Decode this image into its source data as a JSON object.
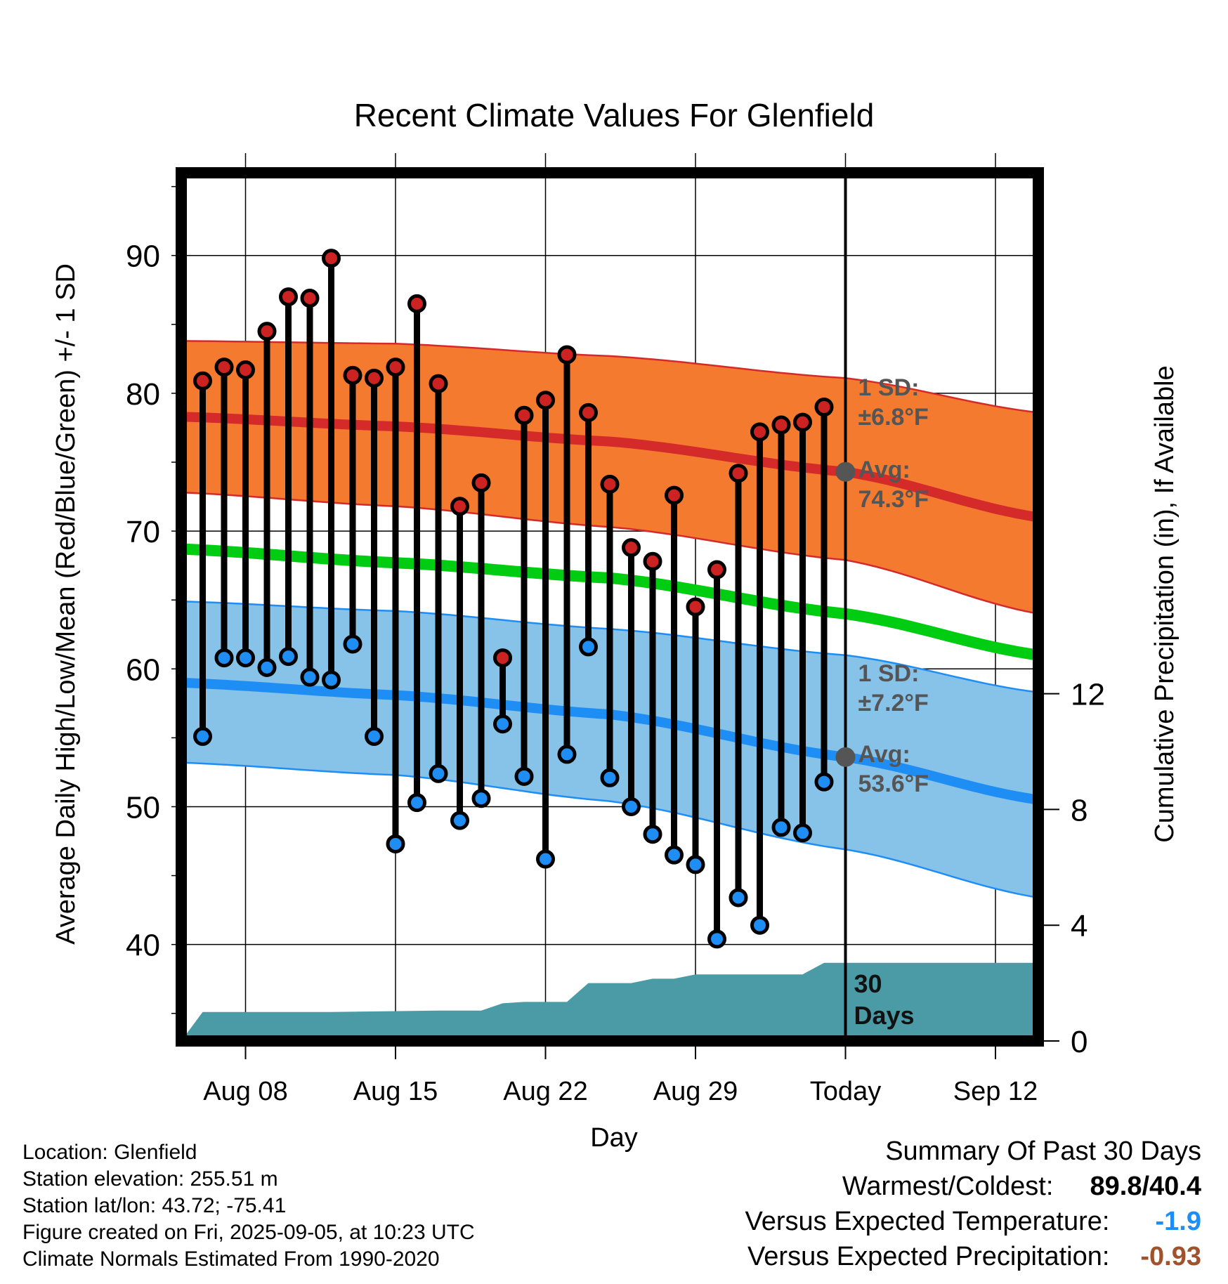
{
  "chart_data": {
    "type": "line",
    "title": "Recent Climate Values For Glenfield",
    "xlabel": "Day",
    "ylabel": "Average Daily High/Low/Mean (Red/Blue/Green) +/- 1 SD",
    "y2label": "Cumulative Precipitation (in), If Available",
    "x_ticks": [
      "Aug 08",
      "Aug 15",
      "Aug 22",
      "Aug 29",
      "Today",
      "Sep 12"
    ],
    "x_tick_dates": [
      "2025-08-08",
      "2025-08-15",
      "2025-08-22",
      "2025-08-29",
      "2025-09-05",
      "2025-09-12"
    ],
    "xlim": [
      "2025-08-05",
      "2025-09-14"
    ],
    "ylim": [
      33,
      96
    ],
    "y_ticks": [
      40,
      50,
      60,
      70,
      80,
      90
    ],
    "y2lim": [
      0,
      30
    ],
    "y2_ticks": [
      0,
      4,
      8,
      12
    ],
    "grid": true,
    "today": "2025-09-05",
    "today_label_lines": [
      "30",
      "Days"
    ],
    "observations": {
      "dates": [
        "2025-08-06",
        "2025-08-07",
        "2025-08-08",
        "2025-08-09",
        "2025-08-10",
        "2025-08-11",
        "2025-08-12",
        "2025-08-13",
        "2025-08-14",
        "2025-08-15",
        "2025-08-16",
        "2025-08-17",
        "2025-08-18",
        "2025-08-19",
        "2025-08-20",
        "2025-08-21",
        "2025-08-22",
        "2025-08-23",
        "2025-08-24",
        "2025-08-25",
        "2025-08-26",
        "2025-08-27",
        "2025-08-28",
        "2025-08-29",
        "2025-08-30",
        "2025-08-31",
        "2025-09-01",
        "2025-09-02",
        "2025-09-03",
        "2025-09-04"
      ],
      "high": [
        80.9,
        81.9,
        81.7,
        84.5,
        87.0,
        86.9,
        89.8,
        81.3,
        81.1,
        81.9,
        86.5,
        80.7,
        71.8,
        73.5,
        60.8,
        78.4,
        79.5,
        82.8,
        78.6,
        73.4,
        68.8,
        67.8,
        72.6,
        64.5,
        67.2,
        74.2,
        77.2,
        77.7,
        77.9,
        79.0
      ],
      "low": [
        55.1,
        60.8,
        60.8,
        60.1,
        60.9,
        59.4,
        59.2,
        61.8,
        55.1,
        47.3,
        50.3,
        52.4,
        49.0,
        50.6,
        56.0,
        52.2,
        46.2,
        53.8,
        61.6,
        52.1,
        50.0,
        48.0,
        46.5,
        45.8,
        40.4,
        43.4,
        41.4,
        48.5,
        48.1,
        51.8
      ]
    },
    "normals": {
      "dates": [
        "2025-08-05",
        "2025-08-15",
        "2025-08-25",
        "2025-09-05",
        "2025-09-14"
      ],
      "high_mean": [
        78.3,
        77.6,
        76.5,
        74.3,
        71.0
      ],
      "high_upper": [
        83.8,
        83.6,
        82.7,
        81.1,
        78.6
      ],
      "high_lower": [
        72.8,
        71.8,
        70.3,
        67.9,
        64.0
      ],
      "mid_mean": [
        68.7,
        67.7,
        66.6,
        64.0,
        61.0
      ],
      "low_mean": [
        59.0,
        58.1,
        56.7,
        53.6,
        50.5
      ],
      "low_upper": [
        64.9,
        64.2,
        62.9,
        61.0,
        58.3
      ],
      "low_lower": [
        53.2,
        52.3,
        50.4,
        46.9,
        43.4
      ]
    },
    "precipitation": {
      "dates": [
        "2025-08-05",
        "2025-08-06",
        "2025-08-12",
        "2025-08-17",
        "2025-08-19",
        "2025-08-20",
        "2025-08-21",
        "2025-08-23",
        "2025-08-24",
        "2025-08-25",
        "2025-08-26",
        "2025-08-27",
        "2025-08-28",
        "2025-08-29",
        "2025-08-30",
        "2025-09-02",
        "2025-09-03",
        "2025-09-04",
        "2025-09-14"
      ],
      "cumulative": [
        0.0,
        1.0,
        1.0,
        1.05,
        1.05,
        1.3,
        1.35,
        1.35,
        2.0,
        2.0,
        2.0,
        2.15,
        2.15,
        2.3,
        2.3,
        2.3,
        2.3,
        2.7,
        2.7
      ]
    },
    "annotations": {
      "high_sd_label": "1 SD:",
      "high_sd_value": "±6.8°F",
      "high_avg_label": "Avg:",
      "high_avg_value": "74.3°F",
      "low_sd_label": "1 SD:",
      "low_sd_value": "±7.2°F",
      "low_avg_label": "Avg:",
      "low_avg_value": "53.6°F"
    },
    "colors": {
      "high_band": "#f47a30",
      "high_line": "#d42a2a",
      "low_band": "#87c2e8",
      "low_line": "#1e8ef5",
      "mean_line": "#00cc11",
      "precip_fill": "#4a9ba5",
      "high_marker": "#cc2222",
      "low_marker": "#1e8ef5",
      "annotation_text": "#555555",
      "above_expected": "#1e8ef5",
      "below_expected": "#a0522d"
    }
  },
  "footer": {
    "location": "Location: Glenfield",
    "elevation": "Station elevation: 255.51 m",
    "latlon": "Station lat/lon: 43.72; -75.41",
    "created": "Figure created on Fri, 2025-09-05, at 10:23 UTC",
    "normals": "Climate Normals Estimated From 1990-2020"
  },
  "summary": {
    "title": "Summary Of Past 30 Days",
    "warmest_coldest_label": "Warmest/Coldest:",
    "warmest": "89.8",
    "coldest": "40.4",
    "temp_label": "Versus Expected Temperature:",
    "temp_value": "-1.9",
    "precip_label": "Versus Expected Precipitation:",
    "precip_value": "-0.93"
  }
}
